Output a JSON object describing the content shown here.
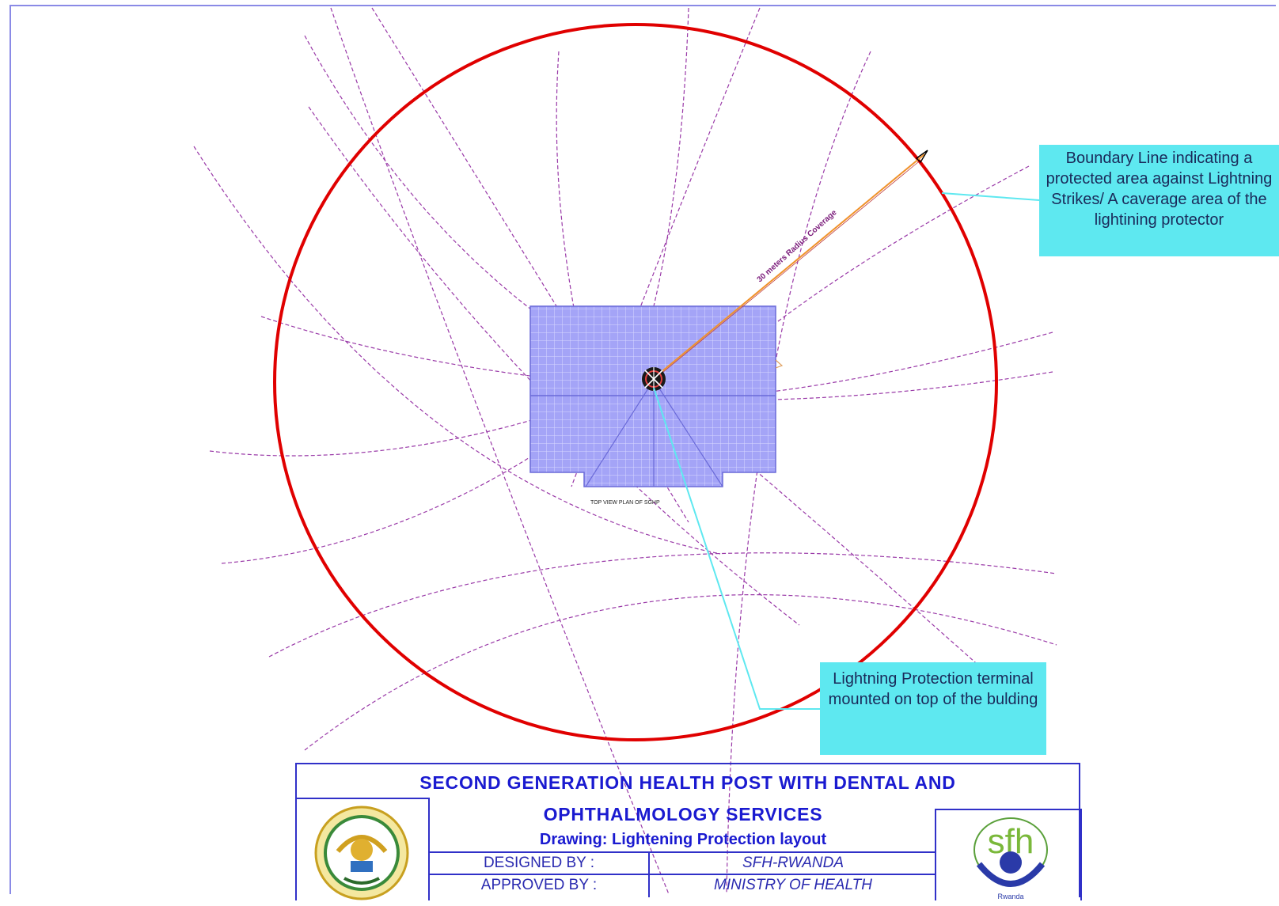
{
  "drawing": {
    "radius_label": "30 meters Radius Coverage",
    "plan_label": "TOP VIEW PLAN OF SGHP"
  },
  "callouts": {
    "boundary": "Boundary Line indicating a protected area against Lightning Strikes/ A caverage area of the lightining protector",
    "terminal": "Lightning Protection terminal mounted on top of the bulding"
  },
  "title_block": {
    "title_line1": "SECOND GENERATION HEALTH POST WITH DENTAL AND",
    "title_line2": "OPHTHALMOLOGY SERVICES",
    "drawing_label": "Drawing:  Lightening Protection layout",
    "designed_by_label": "DESIGNED BY :",
    "designed_by_value": "SFH-RWANDA",
    "approved_by_label": "APPROVED BY :",
    "approved_by_value": "MINISTRY OF HEALTH",
    "logo_right_text": "sfh",
    "logo_right_caption": "Rwanda"
  },
  "colors": {
    "boundary_circle": "#e00000",
    "building_fill": "#9a9af5",
    "grid_lines": "#9a3aa8",
    "callout_fill": "#5ee8f0",
    "title_text": "#1a1ad0"
  }
}
